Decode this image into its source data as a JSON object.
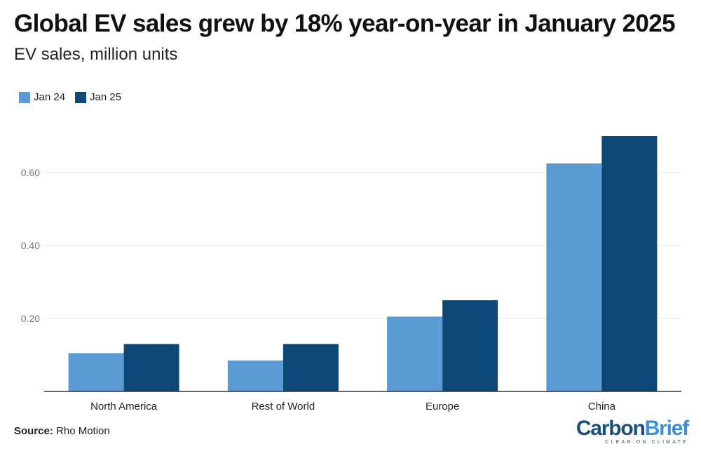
{
  "title": "Global EV sales grew by 18% year-on-year in January 2025",
  "subtitle": "EV sales, million units",
  "source_label": "Source:",
  "source_text": "Rho Motion",
  "logo": {
    "carbon": "Carbon",
    "brief": "Brief",
    "tagline": "CLEAR ON CLIMATE"
  },
  "colors": {
    "jan24": "#5b9bd5",
    "jan25": "#0d4775",
    "grid": "#e3e3e3",
    "axis": "#333333"
  },
  "chart_data": {
    "type": "bar",
    "title": "Global EV sales grew by 18% year-on-year in January 2025",
    "subtitle": "EV sales, million units",
    "categories": [
      "North America",
      "Rest of World",
      "Europe",
      "China"
    ],
    "series": [
      {
        "name": "Jan 24",
        "values": [
          0.105,
          0.085,
          0.205,
          0.625
        ]
      },
      {
        "name": "Jan 25",
        "values": [
          0.13,
          0.13,
          0.25,
          0.7
        ]
      }
    ],
    "yticks": [
      "0.20",
      "0.40",
      "0.60"
    ],
    "ytick_values": [
      0.2,
      0.4,
      0.6
    ],
    "ylim": [
      0,
      0.75
    ],
    "grid": true,
    "legend_position": "top-left"
  }
}
